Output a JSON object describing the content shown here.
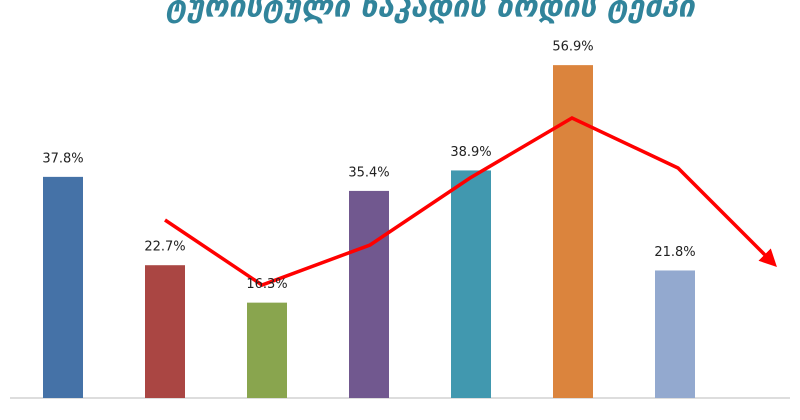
{
  "chart_data": {
    "type": "bar",
    "title": "ტურისტული ნაკადის ზრდის ტემპი",
    "values": [
      37.8,
      22.7,
      16.3,
      35.4,
      38.9,
      56.9,
      21.8
    ],
    "value_labels": [
      "37.8%",
      "22.7%",
      "16.3%",
      "35.4%",
      "38.9%",
      "56.9%",
      "21.8%"
    ],
    "colors": [
      "#4572a7",
      "#aa4643",
      "#89a54e",
      "#71588f",
      "#4198af",
      "#db843d",
      "#93a9cf"
    ],
    "ylim": [
      0,
      60
    ]
  }
}
